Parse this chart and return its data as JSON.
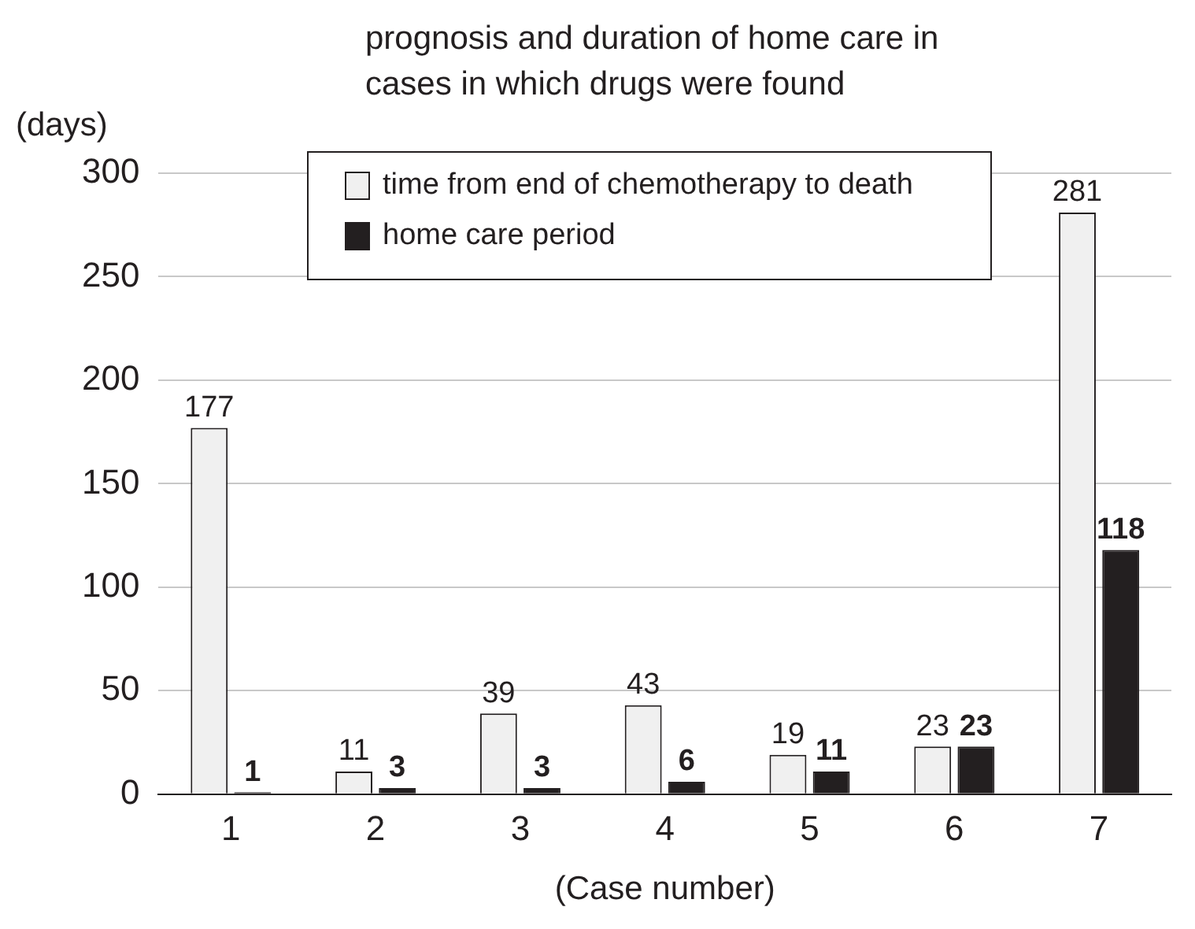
{
  "chart_data": {
    "type": "bar",
    "title": "prognosis and duration of home care in cases in which drugs were found",
    "ylabel": "(days)",
    "xlabel": "(Case number)",
    "categories": [
      "1",
      "2",
      "3",
      "4",
      "5",
      "6",
      "7"
    ],
    "series": [
      {
        "name": "time from end of chemotherapy to death",
        "color": "#f0f0f0",
        "values": [
          177,
          11,
          39,
          43,
          19,
          23,
          281
        ]
      },
      {
        "name": "home care period",
        "color": "#231f20",
        "values": [
          1,
          3,
          3,
          6,
          11,
          23,
          118
        ]
      }
    ],
    "ylim": [
      0,
      300
    ],
    "yticks": [
      0,
      50,
      100,
      150,
      200,
      250,
      300
    ],
    "grid": "y",
    "legend": "top",
    "data_labels": true
  }
}
